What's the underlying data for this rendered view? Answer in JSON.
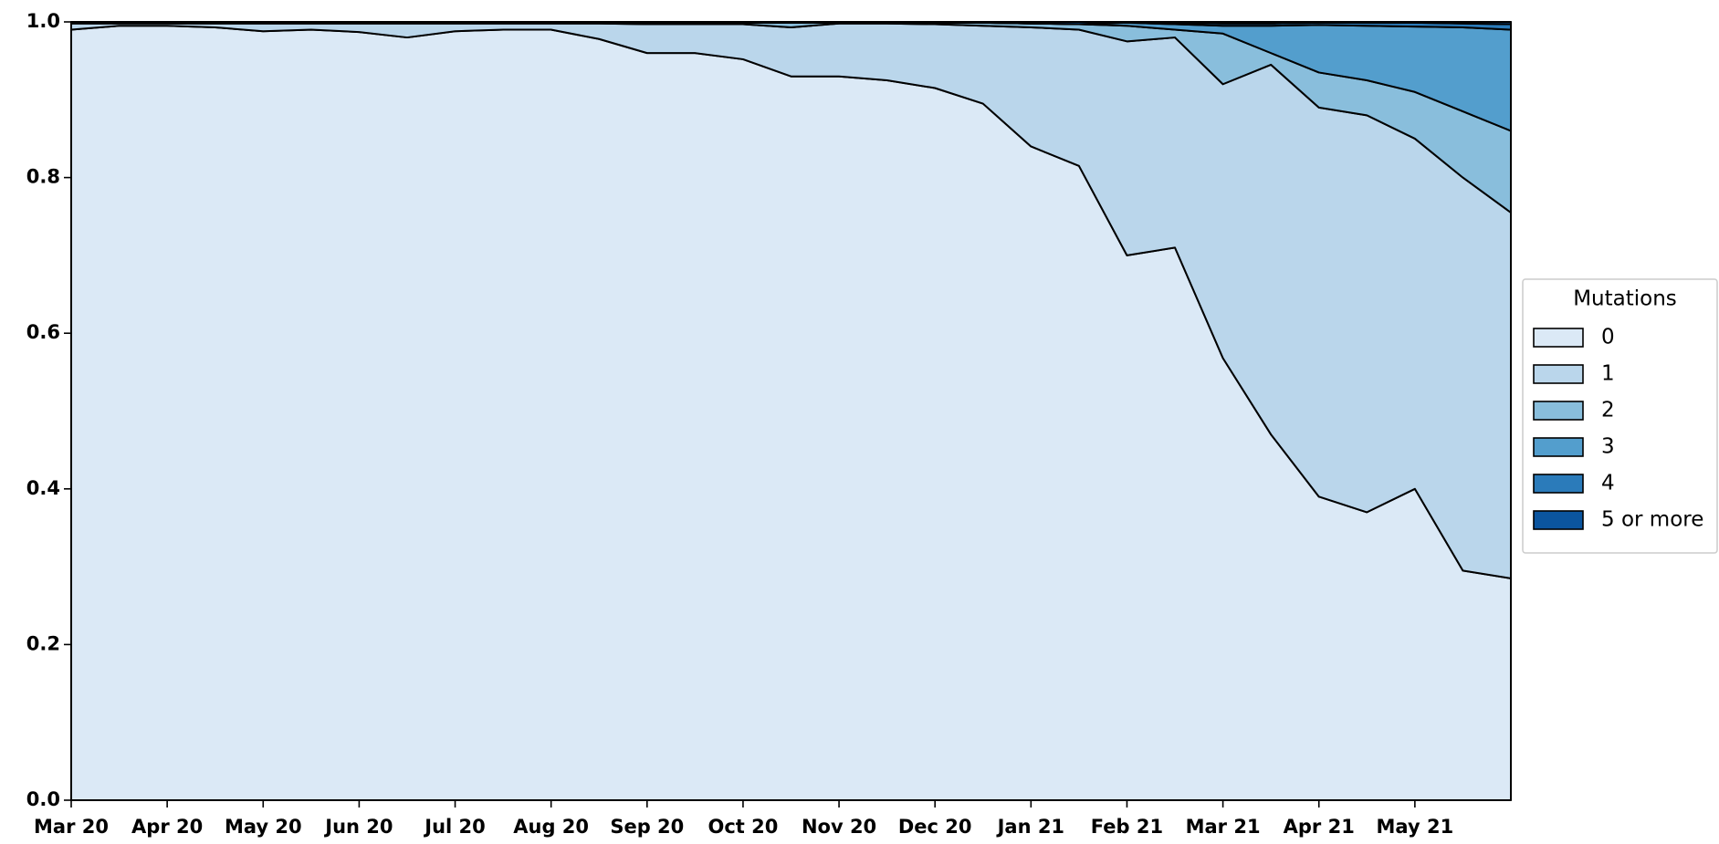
{
  "chart_data": {
    "type": "stackedarea",
    "x": [
      0,
      0.5,
      1,
      1.5,
      2,
      2.5,
      3,
      3.5,
      4,
      4.5,
      5,
      5.5,
      6,
      6.5,
      7,
      7.5,
      8,
      8.5,
      9,
      9.5,
      10,
      10.5,
      11,
      11.5,
      12,
      12.5,
      13,
      13.5,
      14,
      14.5,
      15
    ],
    "xlim": [
      0,
      15
    ],
    "xticks": [
      {
        "value": 0,
        "label": "Mar 20"
      },
      {
        "value": 1,
        "label": "Apr 20"
      },
      {
        "value": 2,
        "label": "May 20"
      },
      {
        "value": 3,
        "label": "Jun 20"
      },
      {
        "value": 4,
        "label": "Jul 20"
      },
      {
        "value": 5,
        "label": "Aug 20"
      },
      {
        "value": 6,
        "label": "Sep 20"
      },
      {
        "value": 7,
        "label": "Oct 20"
      },
      {
        "value": 8,
        "label": "Nov 20"
      },
      {
        "value": 9,
        "label": "Dec 20"
      },
      {
        "value": 10,
        "label": "Jan 21"
      },
      {
        "value": 11,
        "label": "Feb 21"
      },
      {
        "value": 12,
        "label": "Mar 21"
      },
      {
        "value": 13,
        "label": "Apr 21"
      },
      {
        "value": 14,
        "label": "May 21"
      }
    ],
    "ylim": [
      0,
      1
    ],
    "yticks": [
      {
        "value": 0,
        "label": "0.0"
      },
      0.2,
      0.4,
      0.6,
      0.8,
      {
        "value": 1,
        "label": "1.0"
      }
    ],
    "legend_title": "Mutations",
    "legend_position": "right",
    "edge_color": "#000000",
    "series": [
      {
        "name": "0",
        "color": "#dbe9f6",
        "values": [
          0.99,
          0.995,
          0.995,
          0.993,
          0.988,
          0.99,
          0.987,
          0.98,
          0.988,
          0.99,
          0.99,
          0.978,
          0.96,
          0.96,
          0.952,
          0.93,
          0.93,
          0.925,
          0.915,
          0.895,
          0.84,
          0.815,
          0.7,
          0.71,
          0.568,
          0.47,
          0.39,
          0.37,
          0.4,
          0.295,
          0.285
        ]
      },
      {
        "name": "1",
        "color": "#bad6eb",
        "values": [
          0.008,
          0.003,
          0.003,
          0.005,
          0.01,
          0.008,
          0.011,
          0.018,
          0.01,
          0.008,
          0.008,
          0.02,
          0.037,
          0.037,
          0.045,
          0.063,
          0.068,
          0.073,
          0.082,
          0.1,
          0.153,
          0.175,
          0.275,
          0.27,
          0.352,
          0.475,
          0.5,
          0.51,
          0.45,
          0.505,
          0.47
        ]
      },
      {
        "name": "2",
        "color": "#89bedc",
        "values": [
          0.001,
          0.001,
          0.001,
          0.001,
          0.001,
          0.001,
          0.001,
          0.001,
          0.001,
          0.001,
          0.001,
          0.001,
          0.002,
          0.002,
          0.002,
          0.006,
          0.001,
          0.001,
          0.002,
          0.004,
          0.005,
          0.007,
          0.02,
          0.01,
          0.065,
          0.015,
          0.045,
          0.045,
          0.06,
          0.085,
          0.105
        ]
      },
      {
        "name": "3",
        "color": "#539ecd",
        "values": [
          0,
          0,
          0,
          0,
          0,
          0,
          0,
          0,
          0,
          0,
          0,
          0,
          0,
          0,
          0,
          0,
          0,
          0,
          0,
          0,
          0,
          0,
          0.004,
          0.007,
          0.01,
          0.035,
          0.061,
          0.07,
          0.084,
          0.108,
          0.13
        ]
      },
      {
        "name": "4",
        "color": "#2b7bba",
        "values": [
          0,
          0,
          0,
          0,
          0,
          0,
          0,
          0,
          0,
          0,
          0,
          0,
          0,
          0,
          0,
          0,
          0,
          0,
          0,
          0,
          0,
          0,
          0.001,
          0.002,
          0.003,
          0.003,
          0.003,
          0.004,
          0.005,
          0.005,
          0.007
        ]
      },
      {
        "name": "5 or more",
        "color": "#0b559f",
        "values": [
          0.001,
          0.001,
          0.001,
          0.001,
          0.001,
          0.001,
          0.001,
          0.001,
          0.001,
          0.001,
          0.001,
          0.001,
          0.001,
          0.001,
          0.001,
          0.001,
          0.001,
          0.001,
          0.001,
          0.001,
          0.002,
          0.003,
          0,
          0.001,
          0.002,
          0.002,
          0.001,
          0.001,
          0.001,
          0.002,
          0.003
        ]
      }
    ]
  }
}
